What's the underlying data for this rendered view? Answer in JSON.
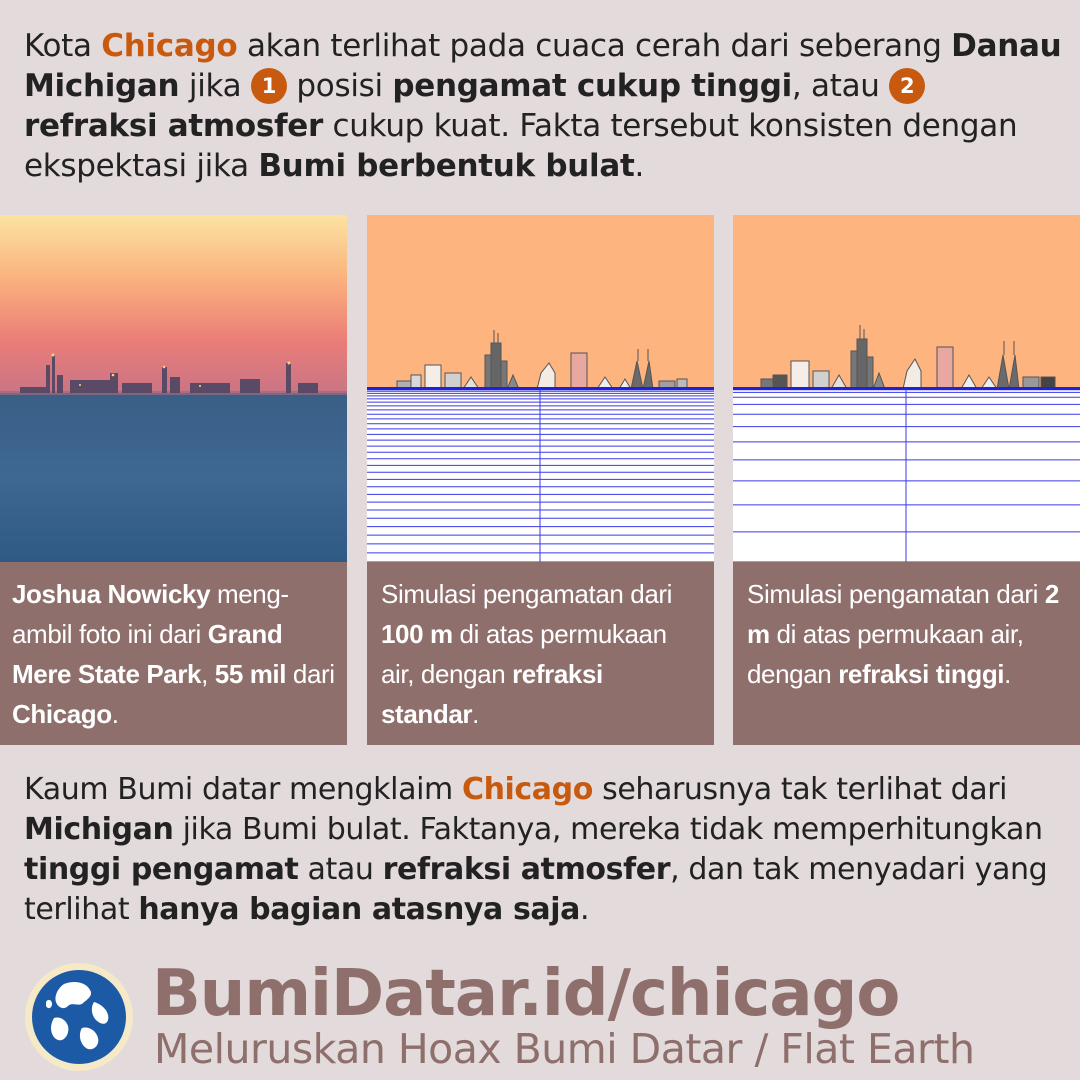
{
  "intro": {
    "t1": "Kota ",
    "city": "Chicago",
    "t2": " akan terlihat pada cuaca cerah dari seberang ",
    "lake": "Danau Michigan",
    "t3": " jika ",
    "n1": "1",
    "t4": " posisi ",
    "observer": "pengamat cukup tinggi",
    "t5": ", atau ",
    "n2": "2",
    "t6": " ",
    "refraction": "refraksi atmosfer",
    "t7": " cukup kuat. Fakta tersebut konsisten dengan ekspektasi jika ",
    "earth": "Bumi berbentuk bulat",
    "t8": "."
  },
  "panels": [
    {
      "b1": "Joshua Nowicky",
      "t1": " meng­ambil foto ini dari ",
      "b2": "Grand Mere State Park",
      "t2": ", ",
      "b3": "55 mil",
      "t3": " dari ",
      "b4": "Chicago",
      "t4": "."
    },
    {
      "t1": "Simulasi pengamatan dari ",
      "b1": "100 m",
      "t2": " di atas permukaan air, dengan ",
      "b2": "refraksi standar",
      "t3": "."
    },
    {
      "t1": "Simulasi pengamatan dari ",
      "b1": "2 m",
      "t2": " di atas permukaan air, dengan ",
      "b2": "refraksi tinggi",
      "t3": "."
    }
  ],
  "outro": {
    "t1": "Kaum Bumi datar mengklaim ",
    "city": "Chicago",
    "t2": " seharusnya tak ter­lihat dari ",
    "michigan": "Michigan",
    "t3": " jika Bumi bulat. Faktanya, mereka tidak memperhitungkan ",
    "height": "tinggi pengamat",
    "t4": " atau ",
    "refraction": "refraksi atmosfer",
    "t5": ", dan tak menyadari yang terlihat ",
    "top": "hanya bagian atasnya saja",
    "t6": "."
  },
  "brand": {
    "url": "BumiDatar.id/chicago",
    "tagline": "Meluruskan Hoax Bumi Datar / Flat Earth"
  },
  "colors": {
    "accent": "#c85a0f",
    "caption_bg": "#8e6f6c",
    "page_bg": "#e2dadb",
    "sim_sky": "#fdb47f",
    "grid_line": "#3a3ae8"
  }
}
